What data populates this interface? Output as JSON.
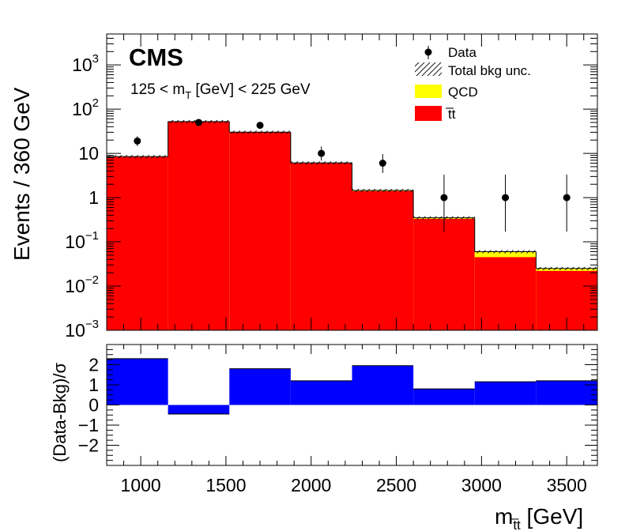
{
  "chart_data": [
    {
      "type": "bar",
      "panel": "main",
      "title": "",
      "cms_label": "CMS",
      "selection": {
        "prefix": "125 < m",
        "sub": "T",
        "suffix": " [GeV] < 225 GeV"
      },
      "ylabel": "Events / 360 GeV",
      "yscale": "log",
      "ylim": [
        0.001,
        5000
      ],
      "xlim": [
        800,
        3680
      ],
      "bin_edges": [
        800,
        1160,
        1520,
        1880,
        2240,
        2600,
        2960,
        3320,
        3680
      ],
      "series": [
        {
          "name": "t̅t",
          "color": "#ff0000",
          "values": [
            8.3,
            52,
            30,
            6.0,
            1.4,
            0.33,
            0.045,
            0.022
          ]
        },
        {
          "name": "QCD",
          "color": "#ffff00",
          "values": [
            0.15,
            0.4,
            0.2,
            0.1,
            0.05,
            0.02,
            0.015,
            0.003
          ]
        }
      ],
      "bkg_unc_label": "Total bkg unc.",
      "bkg_unc_relative": 0.08,
      "data": {
        "name": "Data",
        "x": [
          980,
          1340,
          1700,
          2060,
          2420,
          2780,
          3140,
          3500
        ],
        "y": [
          19,
          50,
          43,
          10,
          6,
          1,
          1,
          1
        ],
        "err_low": [
          4.3,
          7,
          6.5,
          3.1,
          2.4,
          0.83,
          0.83,
          0.83
        ],
        "err_high": [
          5.4,
          8,
          7.5,
          4.3,
          3.6,
          2.3,
          2.3,
          2.3
        ]
      },
      "yticks": [
        {
          "v": 0.001,
          "base": "10",
          "exp": "−3"
        },
        {
          "v": 0.01,
          "base": "10",
          "exp": "−2"
        },
        {
          "v": 0.1,
          "base": "10",
          "exp": "−1"
        },
        {
          "v": 1,
          "base": "1",
          "exp": ""
        },
        {
          "v": 10,
          "base": "10",
          "exp": ""
        },
        {
          "v": 100,
          "base": "10",
          "exp": "2"
        },
        {
          "v": 1000,
          "base": "10",
          "exp": "3"
        }
      ],
      "legend": [
        "Data",
        "Total bkg unc.",
        "QCD",
        "t̅t"
      ],
      "legend_position": "top-right"
    },
    {
      "type": "bar",
      "panel": "ratio",
      "ylabel": "(Data-Bkg)/σ",
      "ylim": [
        -3,
        3
      ],
      "yticks": [
        -2,
        -1,
        0,
        1,
        2
      ],
      "color": "#0000ff",
      "bin_edges": [
        800,
        1160,
        1520,
        1880,
        2240,
        2600,
        2960,
        3320,
        3680
      ],
      "values": [
        2.3,
        -0.45,
        1.8,
        1.2,
        1.95,
        0.8,
        1.15,
        1.2
      ],
      "xlabel": {
        "main": "m",
        "sub": "t̅t",
        "unit": " [GeV]"
      },
      "xticks": [
        1000,
        1500,
        2000,
        2500,
        3000,
        3500
      ]
    }
  ]
}
